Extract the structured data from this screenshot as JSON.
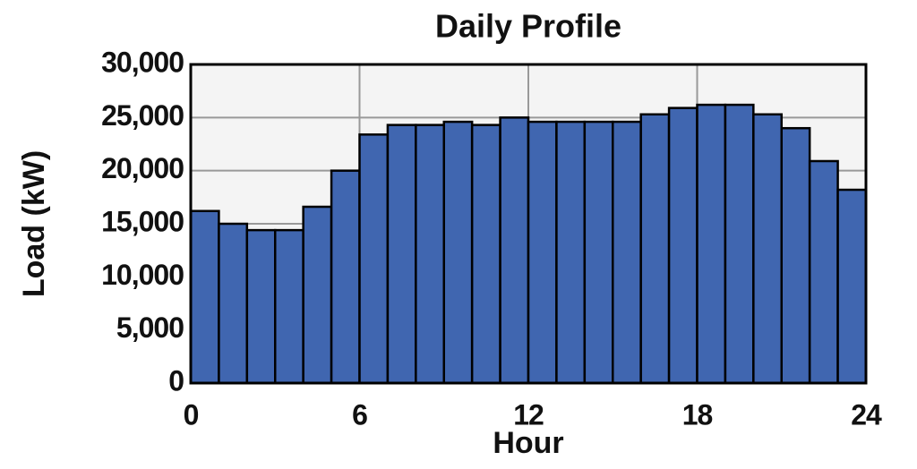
{
  "chart_data": {
    "type": "histogram",
    "title": "Daily Profile",
    "x_label": "Hour",
    "y_label": "Load (kW)",
    "bins": [
      0,
      1,
      2,
      3,
      4,
      5,
      6,
      7,
      8,
      9,
      10,
      11,
      12,
      13,
      14,
      15,
      16,
      17,
      18,
      19,
      20,
      21,
      22,
      23,
      24
    ],
    "values": [
      16200,
      15000,
      14400,
      14400,
      16600,
      20000,
      23400,
      24300,
      24300,
      24600,
      24300,
      25000,
      24600,
      24600,
      24600,
      24600,
      25300,
      25900,
      26200,
      26200,
      25300,
      24000,
      20900,
      18200
    ],
    "color": "#4066b0",
    "xlim": [
      0,
      24
    ],
    "xticks": [
      0,
      6,
      12,
      18,
      24
    ],
    "ylim": [
      0,
      30000
    ],
    "yticks": [
      0,
      {
        "value": 5000,
        "label": "5,000"
      },
      {
        "value": 10000,
        "label": "10,000"
      },
      {
        "value": 15000,
        "label": "15,000"
      },
      {
        "value": 20000,
        "label": "20,000"
      },
      {
        "value": 25000,
        "label": "25,000"
      },
      {
        "value": 30000,
        "label": "30,000"
      }
    ],
    "grid": true
  }
}
